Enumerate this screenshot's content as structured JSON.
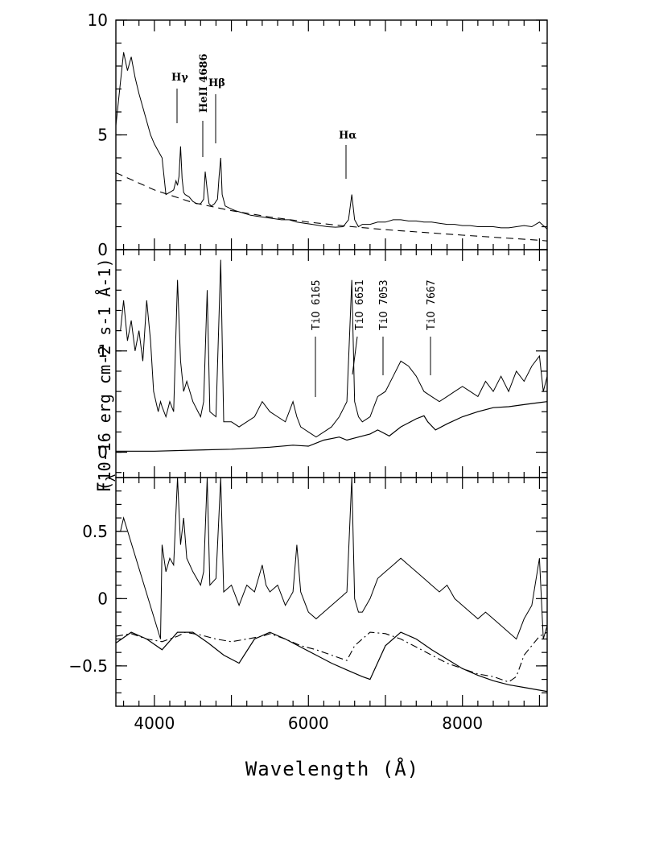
{
  "chart_data": {
    "type": "line",
    "xlabel": "Wavelength (Å)",
    "ylabel_main": "F",
    "ylabel_sub": "λ",
    "ylabel_units": "(10-16 erg cm-2 s-1 Å-1)",
    "xlim": [
      3500,
      9100
    ],
    "x_ticks": [
      4000,
      6000,
      8000
    ],
    "x_tick_labels": [
      "4000",
      "6000",
      "8000"
    ],
    "panels": [
      {
        "id": "top",
        "ylim": [
          0,
          10
        ],
        "y_ticks": [
          0,
          5,
          10
        ],
        "y_tick_labels": [
          "0",
          "5",
          "10"
        ],
        "series": [
          {
            "style": "solid",
            "x": [
              3500,
              3550,
              3600,
              3650,
              3700,
              3750,
              3800,
              3850,
              3900,
              3950,
              4000,
              4050,
              4100,
              4150,
              4200,
              4250,
              4280,
              4300,
              4320,
              4340,
              4360,
              4380,
              4400,
              4450,
              4500,
              4550,
              4600,
              4640,
              4660,
              4686,
              4710,
              4740,
              4780,
              4820,
              4840,
              4861,
              4880,
              4920,
              4980,
              5050,
              5150,
              5250,
              5350,
              5450,
              5550,
              5650,
              5750,
              5850,
              5950,
              6050,
              6150,
              6250,
              6350,
              6450,
              6520,
              6563,
              6600,
              6650,
              6700,
              6800,
              6900,
              7000,
              7100,
              7200,
              7300,
              7400,
              7500,
              7600,
              7700,
              7800,
              7900,
              8000,
              8100,
              8200,
              8300,
              8400,
              8500,
              8600,
              8700,
              8800,
              8900,
              9000,
              9100
            ],
            "y": [
              5.4,
              7.0,
              8.6,
              7.8,
              8.4,
              7.5,
              6.8,
              6.2,
              5.6,
              5.0,
              4.6,
              4.3,
              4.0,
              2.4,
              2.5,
              2.6,
              3.0,
              2.8,
              3.2,
              4.5,
              3.1,
              2.5,
              2.4,
              2.3,
              2.1,
              2.0,
              2.0,
              2.2,
              3.4,
              2.6,
              2.0,
              1.9,
              2.0,
              2.2,
              3.2,
              4.0,
              2.4,
              1.9,
              1.8,
              1.7,
              1.6,
              1.5,
              1.45,
              1.4,
              1.35,
              1.3,
              1.3,
              1.2,
              1.15,
              1.1,
              1.05,
              1.0,
              0.98,
              1.0,
              1.3,
              2.4,
              1.3,
              1.0,
              1.1,
              1.1,
              1.2,
              1.2,
              1.3,
              1.3,
              1.25,
              1.25,
              1.2,
              1.2,
              1.15,
              1.1,
              1.1,
              1.05,
              1.05,
              1.0,
              1.0,
              1.0,
              0.95,
              0.95,
              1.0,
              1.05,
              1.0,
              1.2,
              0.9
            ]
          },
          {
            "style": "dashed",
            "x": [
              3500,
              4000,
              4500,
              5000,
              5500,
              6000,
              6500,
              7000,
              7500,
              8000,
              8500,
              9000,
              9100
            ],
            "y": [
              3.35,
              2.6,
              2.05,
              1.7,
              1.42,
              1.2,
              1.02,
              0.87,
              0.75,
              0.63,
              0.52,
              0.41,
              0.38
            ]
          }
        ],
        "annotations": [
          "Hγ",
          "HeII 4686",
          "Hβ",
          "Hα"
        ]
      },
      {
        "id": "middle",
        "ylim": [
          -0.25,
          2.0
        ],
        "y_ticks": [
          0,
          1
        ],
        "y_tick_labels": [
          "0",
          "1"
        ],
        "series": [
          {
            "style": "solid",
            "x": [
              3560,
              3600,
              3650,
              3700,
              3750,
              3800,
              3850,
              3900,
              3950,
              3990,
              4050,
              4080,
              4100,
              4150,
              4200,
              4250,
              4300,
              4340,
              4380,
              4420,
              4500,
              4600,
              4640,
              4686,
              4720,
              4800,
              4861,
              4900,
              5000,
              5100,
              5200,
              5300,
              5400,
              5500,
              5600,
              5700,
              5800,
              5850,
              5900,
              6000,
              6100,
              6200,
              6300,
              6400,
              6500,
              6563,
              6600,
              6650,
              6700,
              6800,
              6900,
              7000,
              7100,
              7200,
              7300,
              7400,
              7500,
              7600,
              7700,
              7800,
              7900,
              8000,
              8100,
              8200,
              8300,
              8400,
              8500,
              8600,
              8700,
              8800,
              8900,
              9000,
              9050,
              9100
            ],
            "y": [
              1.2,
              1.5,
              1.1,
              1.3,
              1.0,
              1.2,
              0.9,
              1.5,
              1.1,
              0.6,
              0.4,
              0.5,
              0.45,
              0.35,
              0.5,
              0.4,
              1.7,
              0.9,
              0.6,
              0.7,
              0.5,
              0.35,
              0.5,
              1.6,
              0.4,
              0.35,
              1.9,
              0.3,
              0.3,
              0.25,
              0.3,
              0.35,
              0.5,
              0.4,
              0.35,
              0.3,
              0.5,
              0.35,
              0.25,
              0.2,
              0.15,
              0.2,
              0.25,
              0.35,
              0.5,
              1.7,
              0.5,
              0.35,
              0.3,
              0.35,
              0.55,
              0.6,
              0.75,
              0.9,
              0.85,
              0.75,
              0.6,
              0.55,
              0.5,
              0.55,
              0.6,
              0.65,
              0.6,
              0.55,
              0.7,
              0.6,
              0.75,
              0.6,
              0.8,
              0.7,
              0.85,
              0.95,
              0.6,
              0.75
            ]
          },
          {
            "style": "solid",
            "x": [
              3500,
              4000,
              4500,
              5000,
              5500,
              5800,
              6000,
              6200,
              6400,
              6500,
              6600,
              6800,
              6900,
              6950,
              7050,
              7200,
              7400,
              7500,
              7550,
              7650,
              7800,
              8000,
              8200,
              8400,
              8600,
              8800,
              9000,
              9100
            ],
            "y": [
              0.01,
              0.01,
              0.02,
              0.03,
              0.05,
              0.07,
              0.06,
              0.12,
              0.15,
              0.12,
              0.14,
              0.18,
              0.22,
              0.2,
              0.16,
              0.25,
              0.33,
              0.36,
              0.3,
              0.22,
              0.28,
              0.35,
              0.4,
              0.44,
              0.45,
              0.47,
              0.49,
              0.5
            ]
          }
        ],
        "annotations": [
          "TiO 6165",
          "TiO 6651",
          "TiO 7053",
          "TiO 7667"
        ]
      },
      {
        "id": "bottom",
        "ylim": [
          -0.8,
          0.9
        ],
        "y_ticks": [
          -0.5,
          0,
          0.5
        ],
        "y_tick_labels": [
          "−0.5",
          "0",
          "0.5"
        ],
        "series": [
          {
            "style": "solid",
            "x": [
              3560,
              3600,
              4080,
              4100,
              4150,
              4200,
              4250,
              4300,
              4340,
              4380,
              4420,
              4500,
              4600,
              4640,
              4686,
              4720,
              4800,
              4861,
              4900,
              5000,
              5100,
              5200,
              5300,
              5400,
              5450,
              5500,
              5600,
              5700,
              5800,
              5850,
              5900,
              6000,
              6100,
              6200,
              6300,
              6400,
              6500,
              6563,
              6600,
              6650,
              6700,
              6800,
              6900,
              7000,
              7100,
              7200,
              7300,
              7400,
              7500,
              7600,
              7700,
              7800,
              7900,
              8000,
              8100,
              8200,
              8300,
              8400,
              8500,
              8600,
              8700,
              8800,
              8900,
              9000,
              9050,
              9100
            ],
            "y": [
              0.5,
              0.6,
              -0.3,
              0.4,
              0.2,
              0.3,
              0.25,
              0.9,
              0.4,
              0.6,
              0.3,
              0.2,
              0.1,
              0.2,
              0.9,
              0.1,
              0.15,
              0.9,
              0.05,
              0.1,
              -0.05,
              0.1,
              0.05,
              0.25,
              0.1,
              0.05,
              0.1,
              -0.05,
              0.05,
              0.4,
              0.05,
              -0.1,
              -0.15,
              -0.1,
              -0.05,
              0.0,
              0.05,
              0.9,
              0.0,
              -0.1,
              -0.1,
              0.0,
              0.15,
              0.2,
              0.25,
              0.3,
              0.25,
              0.2,
              0.15,
              0.1,
              0.05,
              0.1,
              0.0,
              -0.05,
              -0.1,
              -0.15,
              -0.1,
              -0.15,
              -0.2,
              -0.25,
              -0.3,
              -0.15,
              -0.05,
              0.3,
              -0.3,
              -0.2
            ]
          },
          {
            "style": "solid",
            "x": [
              3500,
              3700,
              3900,
              4100,
              4300,
              4500,
              4700,
              4900,
              5100,
              5300,
              5500,
              5700,
              5900,
              6100,
              6300,
              6500,
              6700,
              6800,
              7000,
              7200,
              7400,
              7600,
              7800,
              8000,
              8200,
              8400,
              8600,
              8800,
              9000,
              9100
            ],
            "y": [
              -0.33,
              -0.25,
              -0.3,
              -0.38,
              -0.25,
              -0.25,
              -0.33,
              -0.42,
              -0.48,
              -0.3,
              -0.25,
              -0.3,
              -0.36,
              -0.42,
              -0.48,
              -0.53,
              -0.58,
              -0.6,
              -0.35,
              -0.25,
              -0.3,
              -0.38,
              -0.45,
              -0.52,
              -0.57,
              -0.61,
              -0.64,
              -0.66,
              -0.68,
              -0.69
            ]
          },
          {
            "style": "dashdot",
            "x": [
              3500,
              3700,
              3900,
              4100,
              4300,
              4400,
              4600,
              4800,
              5000,
              5200,
              5400,
              5500,
              5700,
              5900,
              6100,
              6300,
              6500,
              6600,
              6800,
              7000,
              7200,
              7400,
              7600,
              7800,
              8000,
              8200,
              8400,
              8600,
              8700,
              8800,
              9000,
              9100
            ],
            "y": [
              -0.28,
              -0.26,
              -0.3,
              -0.32,
              -0.28,
              -0.25,
              -0.27,
              -0.3,
              -0.32,
              -0.3,
              -0.28,
              -0.26,
              -0.3,
              -0.35,
              -0.38,
              -0.42,
              -0.46,
              -0.35,
              -0.25,
              -0.26,
              -0.3,
              -0.36,
              -0.42,
              -0.48,
              -0.52,
              -0.56,
              -0.58,
              -0.62,
              -0.58,
              -0.42,
              -0.28,
              -0.25
            ]
          }
        ],
        "annotations": []
      }
    ]
  }
}
